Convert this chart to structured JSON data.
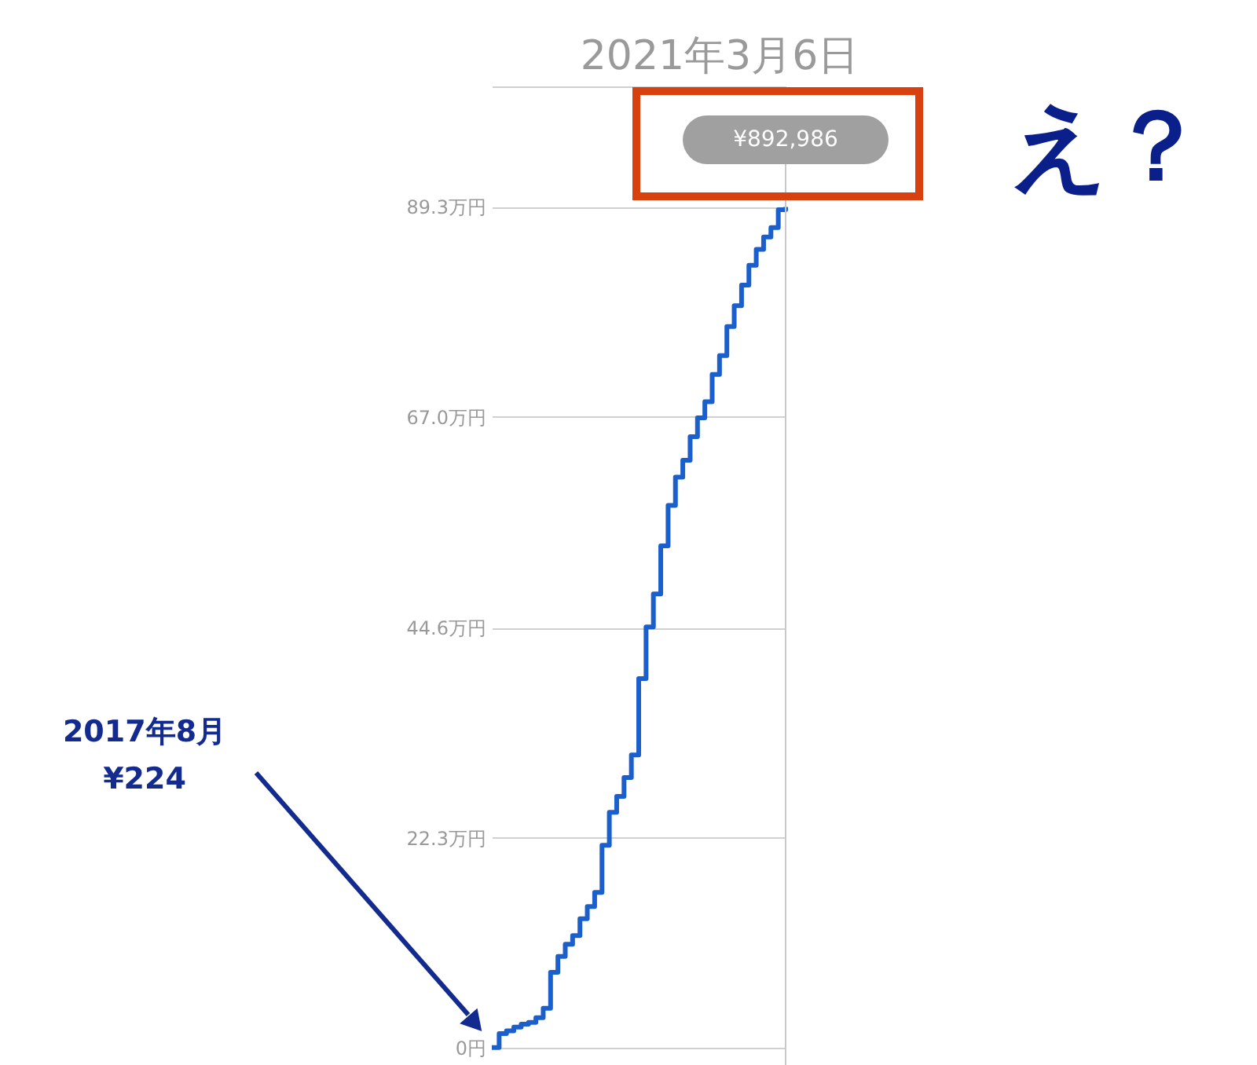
{
  "chart_data": {
    "type": "step",
    "title": "2021年3月6日",
    "categories": [
      null,
      null,
      null,
      null,
      null,
      null,
      null,
      null,
      null,
      null,
      null,
      null,
      null,
      null,
      null,
      null,
      null,
      null,
      null,
      null,
      null,
      null,
      null,
      null,
      null,
      null,
      null,
      null,
      null,
      null,
      null,
      null,
      null,
      null,
      null,
      null,
      null,
      null,
      null,
      null,
      null
    ],
    "values": [
      0.02,
      1.5,
      1.8,
      2.2,
      2.5,
      2.7,
      3.2,
      4.2,
      8.0,
      9.7,
      11.0,
      11.9,
      13.7,
      15.0,
      16.5,
      21.5,
      25.0,
      26.7,
      28.7,
      31.1,
      39.2,
      44.7,
      48.2,
      53.3,
      57.6,
      60.6,
      62.4,
      64.9,
      66.9,
      68.6,
      71.5,
      73.5,
      76.6,
      78.8,
      81.0,
      83.1,
      84.8,
      86.1,
      87.1,
      89.0,
      89.3
    ],
    "line_style": "solid",
    "color": "#1a5fcc",
    "ylim": [
      0,
      102.1
    ],
    "yticks": [
      {
        "value": 0,
        "label": "0円"
      },
      {
        "value": 22.3,
        "label": "22.3万円"
      },
      {
        "value": 44.6,
        "label": "44.6万円"
      },
      {
        "value": 67.0,
        "label": "67.0万円"
      },
      {
        "value": 89.3,
        "label": "89.3万円"
      },
      {
        "value": 102.1,
        "label": null
      }
    ],
    "tick_labels": "y",
    "grid": "y",
    "annotations": [
      "¥892,986",
      "2017年8月\n¥224",
      "え？"
    ]
  }
}
